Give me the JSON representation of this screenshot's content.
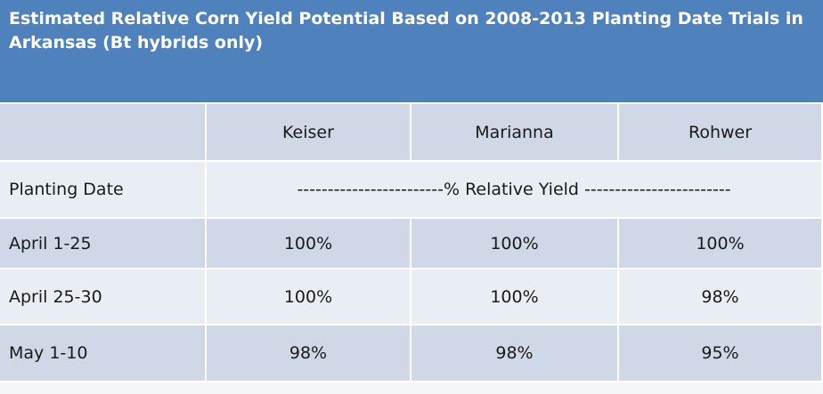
{
  "header": {
    "title": "Estimated Relative Corn Yield Potential Based on 2008-2013 Planting Date Trials in Arkansas (Bt hybrids only)"
  },
  "table": {
    "columns": [
      "Keiser",
      "Marianna",
      "Rohwer"
    ],
    "subheader": {
      "label": "Planting Date",
      "span": "------------------------% Relative Yield ------------------------"
    },
    "rows": [
      [
        "April 1-25",
        "100%",
        "100%",
        "100%"
      ],
      [
        "April 25-30",
        "100%",
        "100%",
        "98%"
      ],
      [
        "May 1-10",
        "98%",
        "98%",
        "95%"
      ]
    ]
  }
}
